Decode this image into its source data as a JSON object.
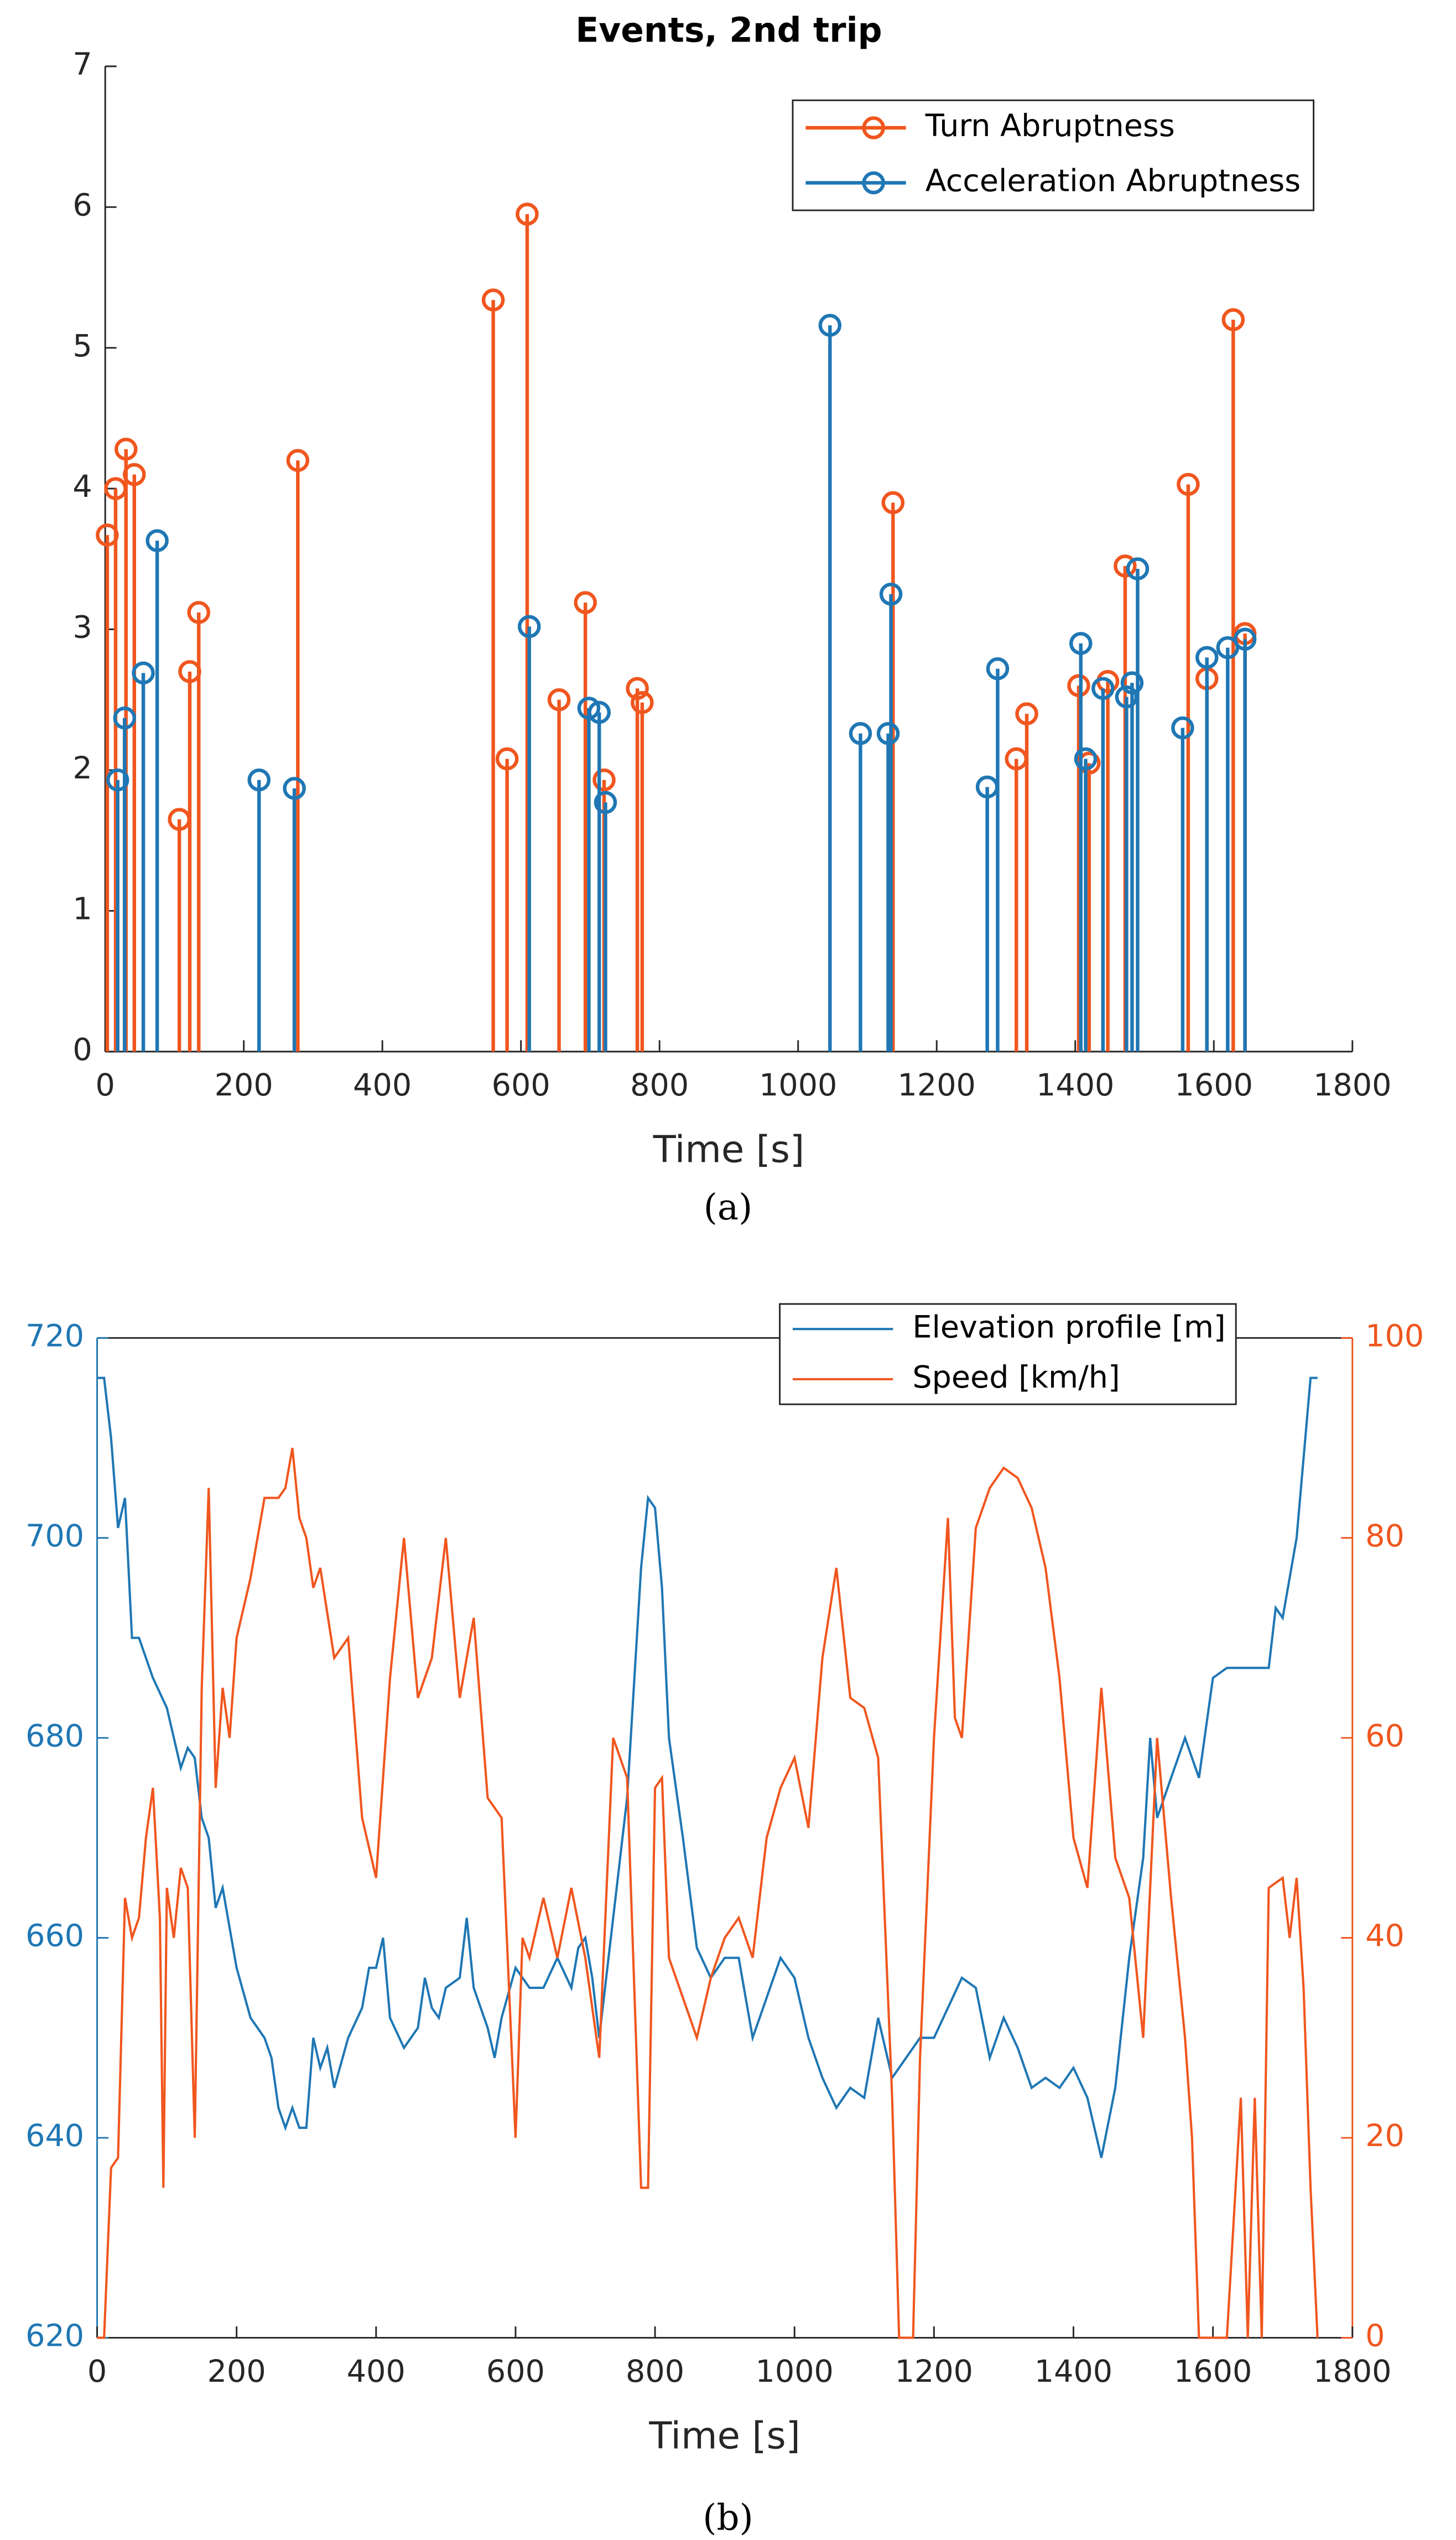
{
  "chart_data": [
    {
      "type": "stem",
      "title": "Events, 2nd trip",
      "xlabel": "Time [s]",
      "caption": "(a)",
      "xlim": [
        0,
        1800
      ],
      "xticks": [
        0,
        200,
        400,
        600,
        800,
        1000,
        1200,
        1400,
        1600,
        1800
      ],
      "ylim": [
        0,
        7
      ],
      "yticks": [
        0,
        1,
        2,
        3,
        4,
        5,
        6,
        7
      ],
      "legend": "upper right",
      "series": [
        {
          "name": "Turn Abruptness",
          "color": "#f0561e",
          "x": [
            3,
            15,
            30,
            42,
            107,
            122,
            135,
            278,
            560,
            580,
            609,
            655,
            693,
            720,
            768,
            775,
            1137,
            1315,
            1330,
            1405,
            1420,
            1447,
            1472,
            1563,
            1590,
            1628,
            1645
          ],
          "values": [
            3.67,
            4.0,
            4.28,
            4.1,
            1.65,
            2.7,
            3.12,
            4.2,
            5.34,
            2.08,
            5.95,
            2.5,
            3.19,
            1.93,
            2.58,
            2.48,
            3.9,
            2.08,
            2.4,
            2.6,
            2.05,
            2.63,
            3.45,
            4.03,
            2.65,
            5.2,
            2.97
          ]
        },
        {
          "name": "Acceleration Abruptness",
          "color": "#1f77b4",
          "x": [
            18,
            28,
            55,
            75,
            222,
            273,
            612,
            698,
            713,
            722,
            1046,
            1090,
            1130,
            1134,
            1273,
            1288,
            1408,
            1415,
            1440,
            1474,
            1482,
            1490,
            1555,
            1590,
            1620,
            1645
          ],
          "values": [
            1.93,
            2.37,
            2.69,
            3.63,
            1.93,
            1.87,
            3.02,
            2.44,
            2.41,
            1.77,
            5.16,
            2.26,
            2.26,
            3.25,
            1.88,
            2.72,
            2.9,
            2.08,
            2.58,
            2.52,
            2.62,
            3.43,
            2.3,
            2.8,
            2.87,
            2.93
          ]
        }
      ]
    },
    {
      "type": "line",
      "xlabel": "Time [s]",
      "caption": "(b)",
      "box": true,
      "xlim": [
        0,
        1800
      ],
      "xticks": [
        0,
        200,
        400,
        600,
        800,
        1000,
        1200,
        1400,
        1600,
        1800
      ],
      "ylim": [
        620,
        720
      ],
      "yticks": [
        620,
        640,
        660,
        680,
        700,
        720
      ],
      "y2lim": [
        0,
        100
      ],
      "y2ticks": [
        0,
        20,
        40,
        60,
        80,
        100
      ],
      "legend": "upper right",
      "series": [
        {
          "name": "Elevation profile [m]",
          "color": "#1f77b4",
          "x": [
            0,
            10,
            20,
            30,
            40,
            50,
            60,
            80,
            100,
            110,
            120,
            130,
            140,
            150,
            160,
            170,
            180,
            200,
            220,
            240,
            250,
            260,
            270,
            280,
            290,
            300,
            310,
            320,
            330,
            340,
            360,
            380,
            390,
            400,
            410,
            420,
            440,
            460,
            470,
            480,
            490,
            500,
            520,
            530,
            540,
            560,
            570,
            580,
            600,
            620,
            640,
            660,
            680,
            690,
            700,
            710,
            720,
            740,
            760,
            780,
            790,
            800,
            810,
            820,
            840,
            860,
            880,
            900,
            920,
            940,
            960,
            980,
            1000,
            1020,
            1040,
            1060,
            1080,
            1100,
            1120,
            1140,
            1160,
            1180,
            1200,
            1220,
            1240,
            1260,
            1280,
            1300,
            1320,
            1340,
            1360,
            1380,
            1400,
            1420,
            1440,
            1460,
            1480,
            1500,
            1510,
            1520,
            1540,
            1560,
            1580,
            1600,
            1620,
            1680,
            1690,
            1700,
            1720,
            1740,
            1750
          ],
          "values": [
            716,
            716,
            710,
            701,
            704,
            690,
            690,
            686,
            683,
            680,
            677,
            679,
            678,
            672,
            670,
            663,
            665,
            657,
            652,
            650,
            648,
            643,
            641,
            643,
            641,
            641,
            650,
            647,
            649,
            645,
            650,
            653,
            657,
            657,
            660,
            652,
            649,
            651,
            656,
            653,
            652,
            655,
            656,
            662,
            655,
            651,
            648,
            652,
            657,
            655,
            655,
            658,
            655,
            659,
            660,
            656,
            650,
            662,
            674,
            697,
            704,
            703,
            695,
            680,
            670,
            659,
            656,
            658,
            658,
            650,
            654,
            658,
            656,
            650,
            646,
            643,
            645,
            644,
            652,
            646,
            648,
            650,
            650,
            653,
            656,
            655,
            648,
            652,
            649,
            645,
            646,
            645,
            647,
            644,
            638,
            645,
            658,
            668,
            680,
            672,
            676,
            680,
            676,
            686,
            687,
            687,
            693,
            692,
            700,
            716,
            716
          ]
        },
        {
          "name": "Speed [km/h]",
          "color": "#f0561e",
          "axis": "y2",
          "x": [
            0,
            10,
            20,
            30,
            40,
            50,
            60,
            70,
            80,
            90,
            95,
            100,
            110,
            120,
            130,
            140,
            150,
            160,
            170,
            180,
            190,
            200,
            220,
            240,
            260,
            270,
            280,
            290,
            300,
            310,
            320,
            340,
            360,
            380,
            400,
            420,
            440,
            460,
            480,
            500,
            520,
            540,
            560,
            580,
            600,
            610,
            620,
            640,
            660,
            680,
            700,
            720,
            740,
            760,
            780,
            790,
            800,
            810,
            820,
            840,
            860,
            880,
            900,
            920,
            940,
            960,
            980,
            1000,
            1020,
            1040,
            1060,
            1080,
            1100,
            1120,
            1140,
            1150,
            1170,
            1180,
            1200,
            1220,
            1230,
            1240,
            1260,
            1280,
            1300,
            1320,
            1340,
            1360,
            1380,
            1400,
            1420,
            1440,
            1460,
            1480,
            1500,
            1520,
            1540,
            1560,
            1570,
            1580,
            1620,
            1640,
            1650,
            1660,
            1670,
            1680,
            1700,
            1710,
            1720,
            1730,
            1740,
            1750
          ],
          "values": [
            0,
            0,
            17,
            18,
            44,
            40,
            42,
            50,
            55,
            42,
            15,
            45,
            40,
            47,
            45,
            20,
            65,
            85,
            55,
            65,
            60,
            70,
            76,
            84,
            84,
            85,
            89,
            82,
            80,
            75,
            77,
            68,
            70,
            52,
            46,
            66,
            80,
            64,
            68,
            80,
            64,
            72,
            54,
            52,
            20,
            40,
            38,
            44,
            38,
            45,
            38,
            28,
            60,
            56,
            15,
            15,
            55,
            56,
            38,
            34,
            30,
            36,
            40,
            42,
            38,
            50,
            55,
            58,
            51,
            68,
            77,
            64,
            63,
            58,
            24,
            0,
            0,
            28,
            60,
            82,
            62,
            60,
            81,
            85,
            87,
            86,
            83,
            77,
            66,
            50,
            45,
            65,
            48,
            44,
            30,
            60,
            44,
            30,
            20,
            0,
            0,
            24,
            0,
            24,
            0,
            45,
            46,
            40,
            46,
            35,
            15,
            0
          ]
        }
      ]
    }
  ]
}
